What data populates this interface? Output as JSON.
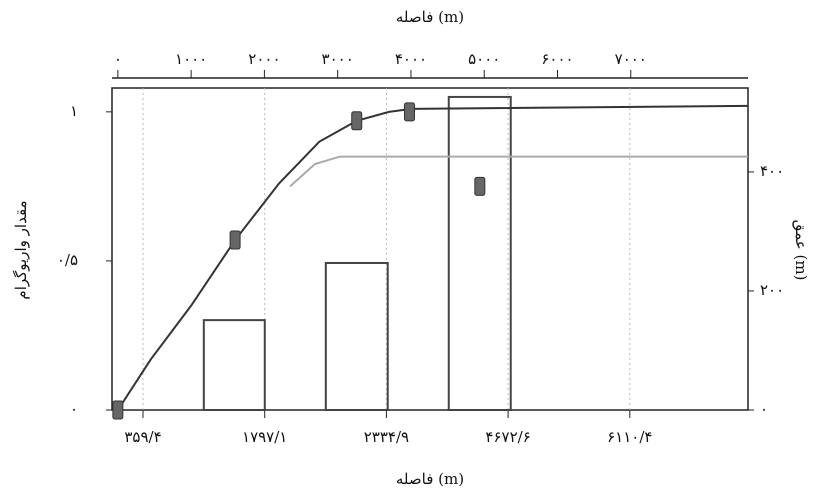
{
  "chart_data": {
    "type": "variogram",
    "x_label": "فاصله (m)",
    "bottom_x_label": "فاصله (m)",
    "y_label": "مقدار واریوگرام",
    "y2_label": "عمق (m)",
    "xlim": [
      -80,
      8600
    ],
    "xticks": [
      {
        "value": 0,
        "label": "۰"
      },
      {
        "value": 1000,
        "label": "۱۰۰۰"
      },
      {
        "value": 2000,
        "label": "۲۰۰۰"
      },
      {
        "value": 3000,
        "label": "۳۰۰۰"
      },
      {
        "value": 4000,
        "label": "۴۰۰۰"
      },
      {
        "value": 5000,
        "label": "۵۰۰۰"
      },
      {
        "value": 6000,
        "label": "۶۰۰۰"
      },
      {
        "value": 7000,
        "label": "۷۰۰۰"
      }
    ],
    "bottom_tick_labels": [
      "۳۵۹/۴",
      "۱۷۹۷/۱",
      "۲۳۳۴/۹",
      "۴۶۷۲/۶",
      "۶۱۱۰/۴"
    ],
    "ylim": [
      0,
      1.08
    ],
    "yticks": [
      {
        "value": 0,
        "label": "۰"
      },
      {
        "value": 0.5,
        "label": "۰/۵"
      },
      {
        "value": 1,
        "label": "۱"
      }
    ],
    "y2lim": [
      0,
      541
    ],
    "y2ticks": [
      {
        "value": 0,
        "label": "۰"
      },
      {
        "value": 200,
        "label": "۲۰۰"
      },
      {
        "value": 400,
        "label": "۴۰۰"
      }
    ],
    "bars": {
      "x0": [
        1173,
        2838,
        4516
      ],
      "x1": [
        2005,
        3683,
        5362
      ],
      "values": [
        151,
        247,
        526
      ],
      "color": "#444444",
      "axis": "y2"
    },
    "lines": [
      {
        "color": "#333333",
        "x": [
          0,
          450,
          1000,
          1600,
          2200,
          2750,
          3260,
          3700,
          4000,
          8600
        ],
        "values": [
          0,
          0.17,
          0.35,
          0.57,
          0.76,
          0.9,
          0.97,
          1.0,
          1.01,
          1.02
        ]
      },
      {
        "color": "#aaaaaa",
        "x": [
          2350,
          2690,
          3030,
          8600
        ],
        "values": [
          0.75,
          0.825,
          0.85,
          0.85
        ]
      }
    ],
    "points": {
      "color": "#666666",
      "x": [
        0,
        1600,
        3260,
        3980,
        4940
      ],
      "values": [
        0,
        0.57,
        0.97,
        1.0,
        0.75
      ]
    }
  }
}
